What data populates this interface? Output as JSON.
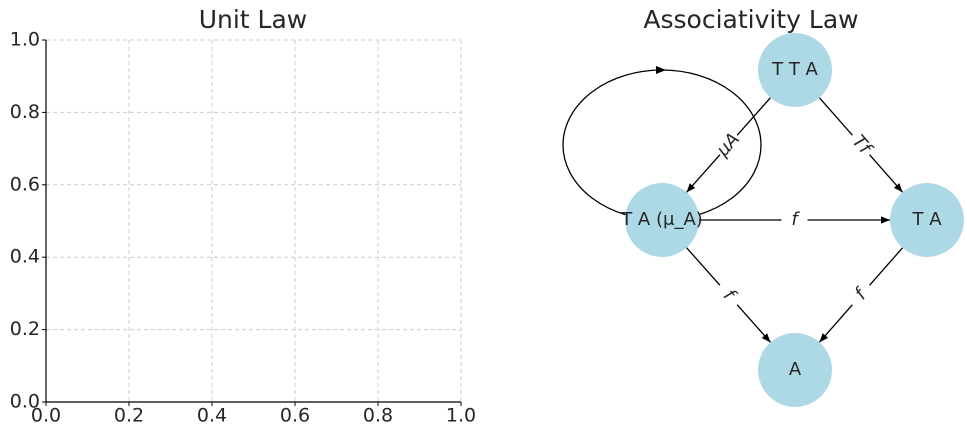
{
  "chart_data": [
    {
      "type": "line",
      "title": "Unit Law",
      "xlim": [
        0,
        1
      ],
      "ylim": [
        0,
        1
      ],
      "xticks": [
        {
          "value": 0,
          "label": "0.0"
        },
        0.2,
        0.4,
        0.6,
        0.8,
        {
          "value": 1,
          "label": "1.0"
        }
      ],
      "yticks": [
        {
          "value": 0,
          "label": "0.0"
        },
        0.2,
        0.4,
        0.6,
        0.8,
        {
          "value": 1,
          "label": "1.0"
        }
      ],
      "grid": true
    },
    {
      "type": "graph",
      "title": "Associativity Law",
      "node_color": "#add8e6",
      "nodes": [
        {
          "label": "T T A"
        },
        {
          "label": "T A (μ_A)"
        },
        {
          "label": "T A"
        },
        {
          "label": "A"
        }
      ],
      "edges": [
        {
          "source": 0,
          "target": 1,
          "label": "μA"
        },
        {
          "source": 0,
          "target": 2,
          "label": "Tf"
        },
        {
          "source": 1,
          "target": 2,
          "label": "f"
        },
        {
          "source": 1,
          "target": 3,
          "label": "f"
        },
        {
          "source": 2,
          "target": 3,
          "label": "f"
        },
        {
          "source": 1,
          "target": 1
        }
      ]
    }
  ]
}
